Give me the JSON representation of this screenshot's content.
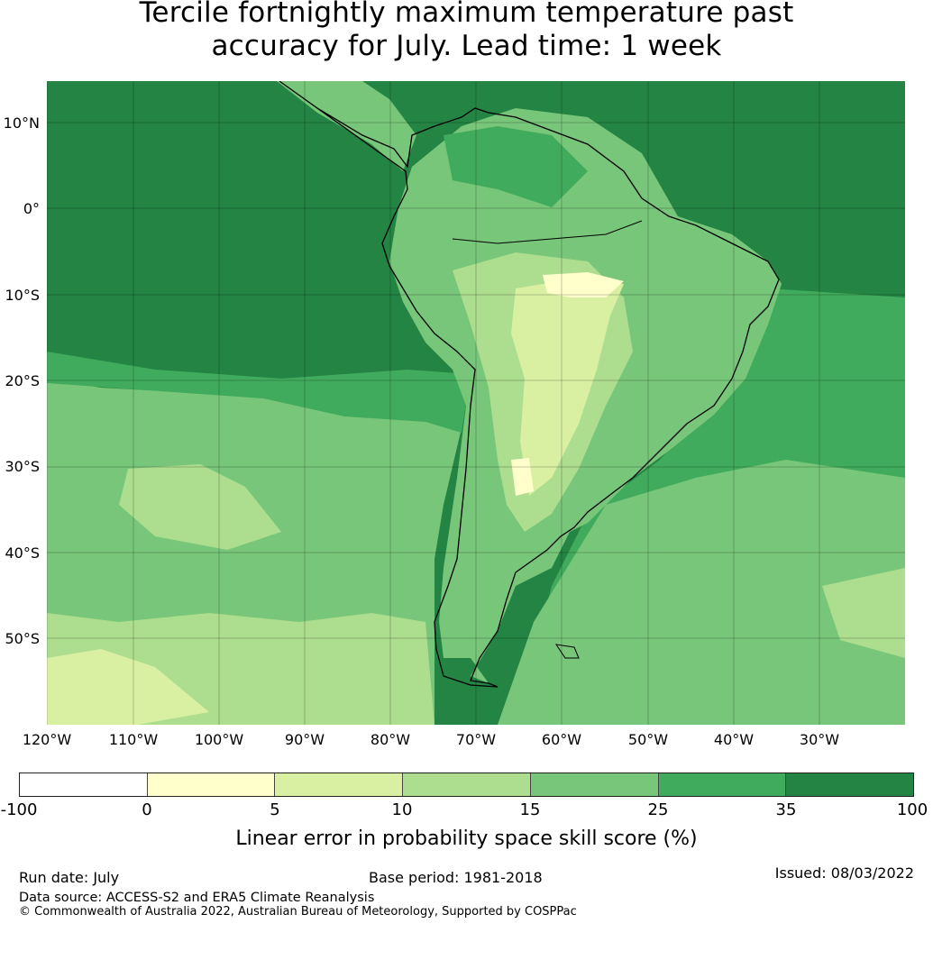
{
  "title_line1": "Tercile fortnightly maximum temperature past",
  "title_line2": "accuracy for July. Lead time: 1 week",
  "map": {
    "lat_labels": [
      "10°N",
      "0°",
      "10°S",
      "20°S",
      "30°S",
      "40°S",
      "50°S"
    ],
    "lon_labels": [
      "120°W",
      "110°W",
      "100°W",
      "90°W",
      "80°W",
      "70°W",
      "60°W",
      "50°W",
      "40°W",
      "30°W"
    ]
  },
  "colorbar": {
    "ticks": [
      "-100",
      "0",
      "5",
      "10",
      "15",
      "25",
      "35",
      "100"
    ],
    "colors": [
      "#ffffff",
      "#ffffcc",
      "#d9f0a3",
      "#addd8e",
      "#78c679",
      "#41ab5d",
      "#238443"
    ],
    "label": "Linear error in probability space skill score (%)"
  },
  "footer": {
    "run_date": "Run date: July",
    "base_period": "Base period: 1981-2018",
    "issued": "Issued: 08/03/2022",
    "data_source": "Data source: ACCESS-S2 and ERA5 Climate Reanalysis",
    "copyright": "© Commonwealth of Australia 2022, Australian Bureau of Meteorology, Supported by COSPPac"
  }
}
